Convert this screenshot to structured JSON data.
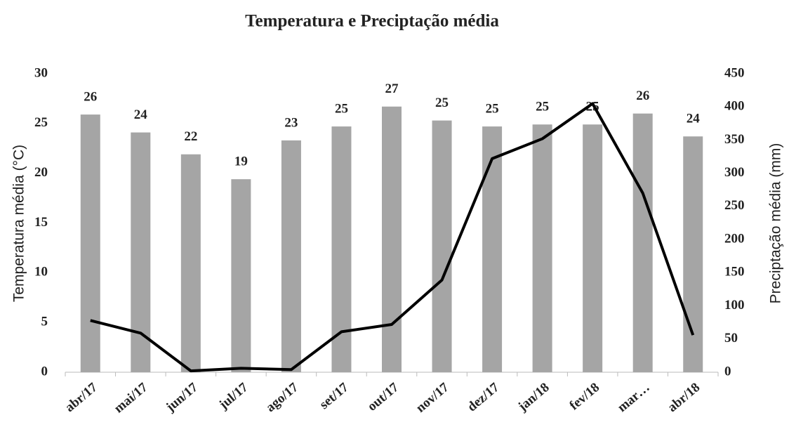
{
  "chart_data": {
    "type": "bar",
    "title": "Temperatura e Preciptação média",
    "categories": [
      "abr/17",
      "mai/17",
      "jun/17",
      "jul/17",
      "ago/17",
      "set/17",
      "out/17",
      "nov/17",
      "dez/17",
      "jan/18",
      "fev/18",
      "mar…",
      "abr/18"
    ],
    "y_label": "Temperatura média (°C)",
    "y2_label": "Preciptação média (mm)",
    "ylim": [
      0,
      30
    ],
    "yticks": [
      0,
      5,
      10,
      15,
      20,
      25,
      30
    ],
    "y2lim": [
      0,
      450
    ],
    "y2ticks": [
      0,
      50,
      100,
      150,
      200,
      250,
      300,
      350,
      400,
      450
    ],
    "series": [
      {
        "name": "Temperatura média",
        "type": "bar",
        "color": "#a5a5a5",
        "values": [
          25.9,
          24.1,
          21.9,
          19.4,
          23.3,
          24.7,
          26.7,
          25.3,
          24.7,
          24.9,
          24.9,
          26.0,
          23.7
        ],
        "value_labels": [
          "26",
          "24",
          "22",
          "19",
          "23",
          "25",
          "27",
          "25",
          "25",
          "25",
          "25",
          "26",
          "24"
        ]
      },
      {
        "name": "Preciptação média",
        "type": "line",
        "axis": "y2",
        "color": "#000000",
        "values": [
          78,
          59,
          2,
          6,
          4,
          61,
          72,
          139,
          322,
          352,
          405,
          270,
          56
        ]
      }
    ]
  }
}
